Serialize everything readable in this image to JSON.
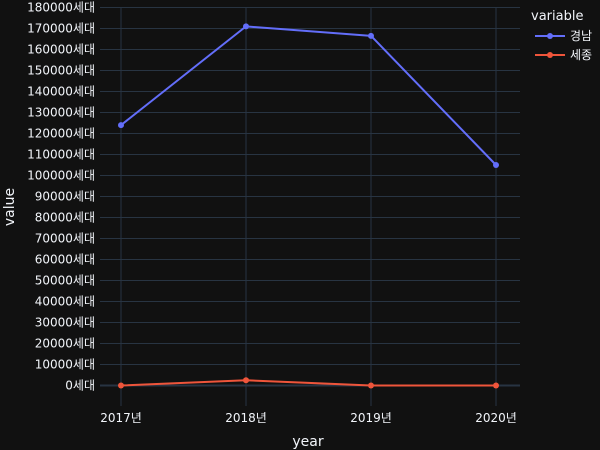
{
  "chart_data": {
    "type": "line",
    "xlabel": "year",
    "ylabel": "value",
    "categories": [
      "2017년",
      "2018년",
      "2019년",
      "2020년"
    ],
    "ylim": [
      0,
      180000
    ],
    "ytick_step": 10000,
    "ytick_suffix": "세대",
    "grid": true,
    "legend": {
      "title": "variable",
      "placement": "top-right"
    },
    "series": [
      {
        "name": "경남",
        "color": "#636efa",
        "values": [
          124000,
          171000,
          166500,
          105000
        ]
      },
      {
        "name": "세종",
        "color": "#ef553b",
        "values": [
          0,
          2500,
          0,
          0
        ]
      }
    ]
  },
  "colors": {
    "background": "#111111",
    "grid": "#283442",
    "text": "#f2f5fa"
  }
}
